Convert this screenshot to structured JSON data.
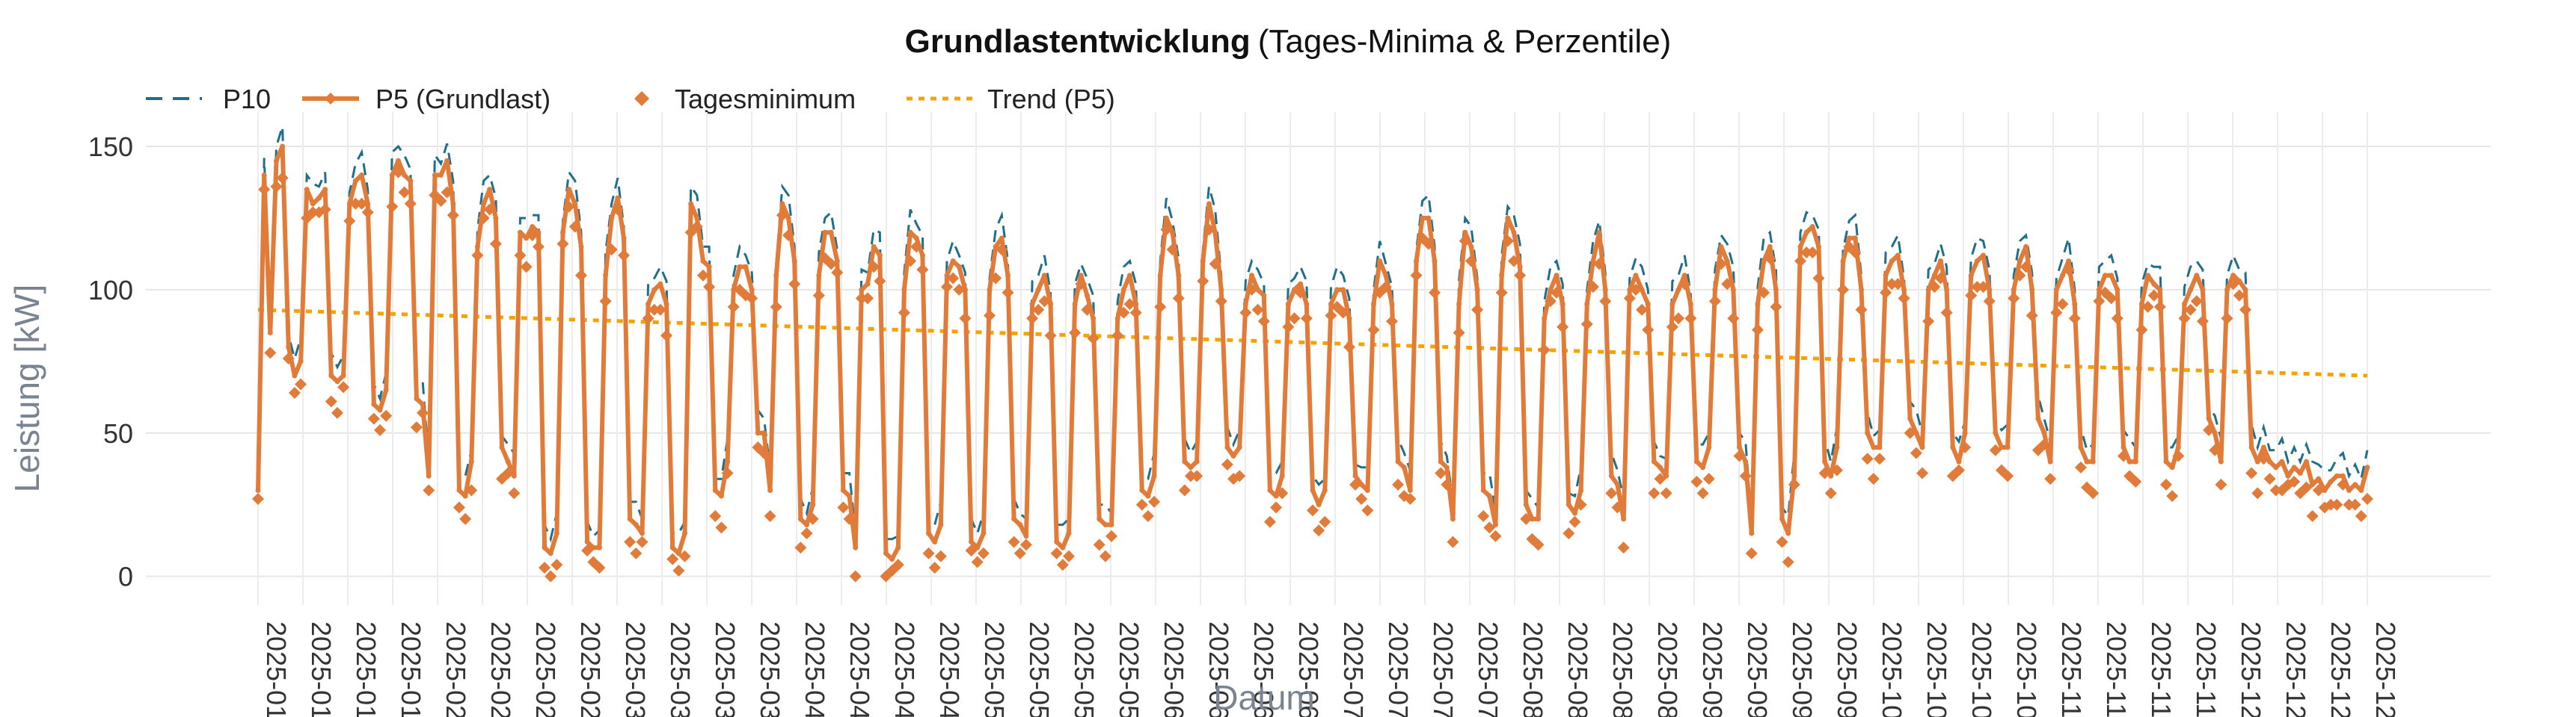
{
  "chart_data": {
    "type": "line",
    "title": "Grundlastentwicklung",
    "subtitle": "(Tages-Minima & Perzentile)",
    "xlabel": "Datum",
    "ylabel": "Leistung [kW]",
    "ylim": [
      -10,
      162
    ],
    "y_ticks": [
      0,
      50,
      100,
      150
    ],
    "x_tick_labels": [
      "2025-01",
      "2025-01",
      "2025-01",
      "2025-01",
      "2025-02",
      "2025-02",
      "2025-02",
      "2025-02",
      "2025-03",
      "2025-03",
      "2025-03",
      "2025-03",
      "2025-04",
      "2025-04",
      "2025-04",
      "2025-04",
      "2025-05",
      "2025-05",
      "2025-05",
      "2025-05",
      "2025-06",
      "2025-06",
      "2025-06",
      "2025-06",
      "2025-07",
      "2025-07",
      "2025-07",
      "2025-07",
      "2025-08",
      "2025-08",
      "2025-08",
      "2025-08",
      "2025-09",
      "2025-09",
      "2025-09",
      "2025-09",
      "2025-10",
      "2025-10",
      "2025-10",
      "2025-10",
      "2025-11",
      "2025-11",
      "2025-11",
      "2025-11",
      "2025-12",
      "2025-12",
      "2025-12",
      "2025-12"
    ],
    "grid": true,
    "legend_position": "top-left",
    "legend": [
      "P10",
      "P5 (Grundlast)",
      "Tagesminimum",
      "Trend (P5)"
    ],
    "colors": {
      "p10": "#1f6f8b",
      "p5": "#e07b39",
      "min": "#e07b39",
      "trend": "#f5a300"
    },
    "x_range": [
      "2025-01-01",
      "2025-12-31"
    ],
    "p5_weekly": [
      [
        30,
        140,
        85,
        145,
        150,
        80,
        70
      ],
      [
        75,
        135,
        130,
        132,
        135,
        70,
        68
      ],
      [
        70,
        130,
        138,
        140,
        130,
        60,
        58
      ],
      [
        65,
        140,
        145,
        140,
        138,
        62,
        60
      ],
      [
        35,
        140,
        140,
        145,
        130,
        30,
        28
      ],
      [
        40,
        115,
        130,
        135,
        125,
        45,
        40
      ],
      [
        35,
        120,
        118,
        122,
        120,
        10,
        8
      ],
      [
        15,
        120,
        135,
        130,
        115,
        12,
        10
      ],
      [
        10,
        105,
        125,
        132,
        118,
        20,
        18
      ],
      [
        15,
        95,
        100,
        102,
        95,
        10,
        8
      ],
      [
        15,
        130,
        125,
        110,
        108,
        30,
        28
      ],
      [
        40,
        100,
        108,
        108,
        100,
        50,
        50
      ],
      [
        30,
        105,
        130,
        125,
        110,
        20,
        18
      ],
      [
        25,
        105,
        120,
        120,
        110,
        30,
        28
      ],
      [
        10,
        100,
        102,
        115,
        112,
        8,
        6
      ],
      [
        10,
        100,
        120,
        118,
        112,
        15,
        12
      ],
      [
        18,
        105,
        110,
        108,
        100,
        12,
        10
      ],
      [
        15,
        100,
        115,
        118,
        105,
        20,
        18
      ],
      [
        14,
        95,
        100,
        105,
        95,
        12,
        10
      ],
      [
        15,
        95,
        105,
        98,
        90,
        20,
        18
      ],
      [
        18,
        90,
        100,
        105,
        95,
        30,
        28
      ],
      [
        35,
        105,
        125,
        120,
        105,
        40,
        38
      ],
      [
        40,
        110,
        130,
        120,
        100,
        45,
        42
      ],
      [
        45,
        95,
        105,
        100,
        98,
        30,
        28
      ],
      [
        35,
        95,
        100,
        102,
        95,
        30,
        25
      ],
      [
        30,
        95,
        100,
        100,
        90,
        35,
        32
      ],
      [
        30,
        95,
        110,
        105,
        95,
        40,
        38
      ],
      [
        30,
        110,
        125,
        125,
        110,
        40,
        38
      ],
      [
        20,
        95,
        120,
        115,
        100,
        30,
        28
      ],
      [
        18,
        105,
        125,
        120,
        108,
        25,
        20
      ],
      [
        20,
        90,
        100,
        105,
        95,
        25,
        22
      ],
      [
        30,
        95,
        110,
        120,
        100,
        35,
        32
      ],
      [
        20,
        100,
        105,
        100,
        95,
        40,
        38
      ],
      [
        35,
        95,
        100,
        105,
        95,
        40,
        38
      ],
      [
        45,
        100,
        115,
        110,
        100,
        45,
        40
      ],
      [
        15,
        95,
        110,
        115,
        100,
        20,
        15
      ],
      [
        35,
        115,
        120,
        122,
        115,
        40,
        35
      ],
      [
        45,
        110,
        118,
        118,
        100,
        50,
        45
      ],
      [
        45,
        105,
        110,
        112,
        100,
        55,
        50
      ],
      [
        45,
        100,
        105,
        110,
        100,
        45,
        40
      ],
      [
        50,
        105,
        110,
        112,
        100,
        50,
        45
      ],
      [
        45,
        100,
        110,
        115,
        100,
        55,
        50
      ],
      [
        40,
        100,
        105,
        110,
        95,
        45,
        40
      ],
      [
        40,
        100,
        105,
        105,
        100,
        45,
        40
      ],
      [
        40,
        95,
        105,
        102,
        100,
        40,
        38
      ],
      [
        45,
        95,
        100,
        105,
        100,
        55,
        50
      ],
      [
        40,
        100,
        105,
        103,
        100,
        45,
        40
      ],
      [
        45,
        40,
        38,
        40,
        35,
        38,
        36
      ],
      [
        40,
        32,
        34,
        30,
        33,
        35,
        35
      ],
      [
        30,
        32,
        30,
        38
      ]
    ],
    "trend": {
      "start": 93,
      "end": 70
    }
  }
}
